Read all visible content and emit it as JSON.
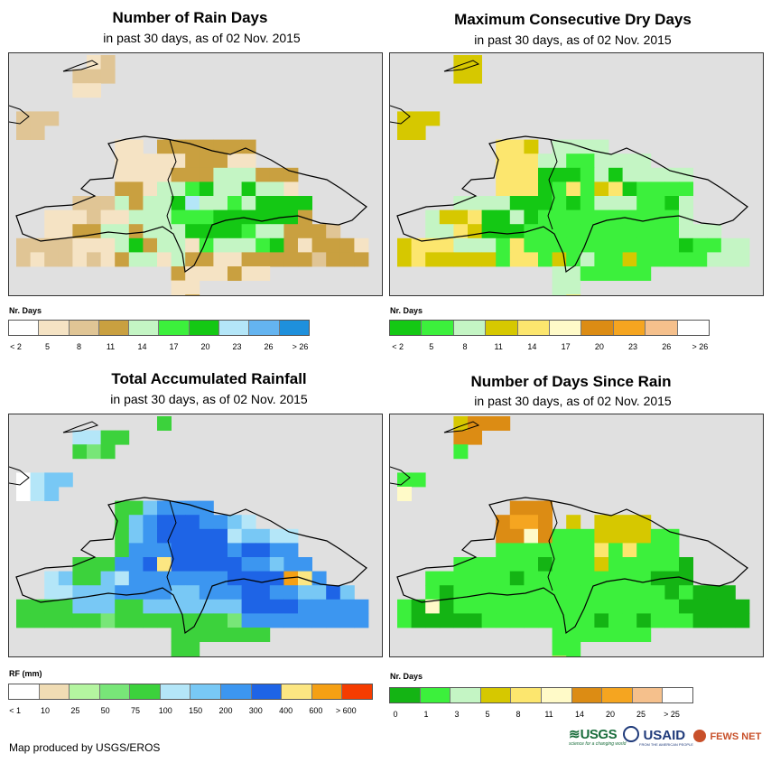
{
  "panels": [
    {
      "id": "rain-days",
      "title": "Number of Rain Days",
      "subtitle": "in past 30 days, as of 02 Nov. 2015",
      "legend_label": "Nr. Days",
      "legend_colors": [
        "#ffffff",
        "#f5e3c4",
        "#e0c595",
        "#c9a040",
        "#c4f5c4",
        "#3cf03c",
        "#14c814",
        "#b4e6f8",
        "#64b4f0",
        "#1e90dc"
      ],
      "legend_ticks": [
        "< 2",
        "5",
        "8",
        "11",
        "14",
        "17",
        "20",
        "23",
        "26",
        "> 26"
      ]
    },
    {
      "id": "max-dry-days",
      "title": "Maximum Consecutive Dry Days",
      "subtitle": "in past 30 days, as of 02 Nov. 2015",
      "legend_label": "Nr. Days",
      "legend_colors": [
        "#14c814",
        "#3cf03c",
        "#c4f5c4",
        "#d6c800",
        "#fce66e",
        "#fffac8",
        "#dc8c14",
        "#f5a520",
        "#f5c08c",
        "#ffffff"
      ],
      "legend_ticks": [
        "< 2",
        "5",
        "8",
        "11",
        "14",
        "17",
        "20",
        "23",
        "26",
        "> 26"
      ]
    },
    {
      "id": "total-rainfall",
      "title": "Total Accumulated Rainfall",
      "subtitle": "in past 30 days, as of 02 Nov. 2015",
      "legend_label": "RF (mm)",
      "legend_colors": [
        "#ffffff",
        "#f0dcb4",
        "#b4f5a0",
        "#78e678",
        "#3cd23c",
        "#b4e6f8",
        "#78c8f5",
        "#3c96f0",
        "#1e64e6",
        "#fce682",
        "#f5a014",
        "#f53c00"
      ],
      "legend_ticks": [
        "< 1",
        "10",
        "25",
        "50",
        "75",
        "100",
        "150",
        "200",
        "300",
        "400",
        "600",
        "> 600"
      ]
    },
    {
      "id": "days-since-rain",
      "title": "Number of Days Since Rain",
      "subtitle": "in past 30 days, as of 02 Nov. 2015",
      "legend_label": "Nr. Days",
      "legend_colors": [
        "#14b414",
        "#3cf03c",
        "#c4f5c4",
        "#d6c800",
        "#fce66e",
        "#fffac8",
        "#dc8c14",
        "#f5a520",
        "#f5c08c",
        "#ffffff"
      ],
      "legend_ticks": [
        "0",
        "1",
        "3",
        "5",
        "8",
        "11",
        "14",
        "20",
        "25",
        "> 25"
      ]
    }
  ],
  "footer": "Map produced by USGS/EROS",
  "logos": {
    "usgs": "USGS",
    "usgs_tagline": "science for a changing world",
    "usaid": "USAID",
    "usaid_tagline": "FROM THE AMERICAN PEOPLE",
    "fewsnet": "FEWS NET"
  }
}
